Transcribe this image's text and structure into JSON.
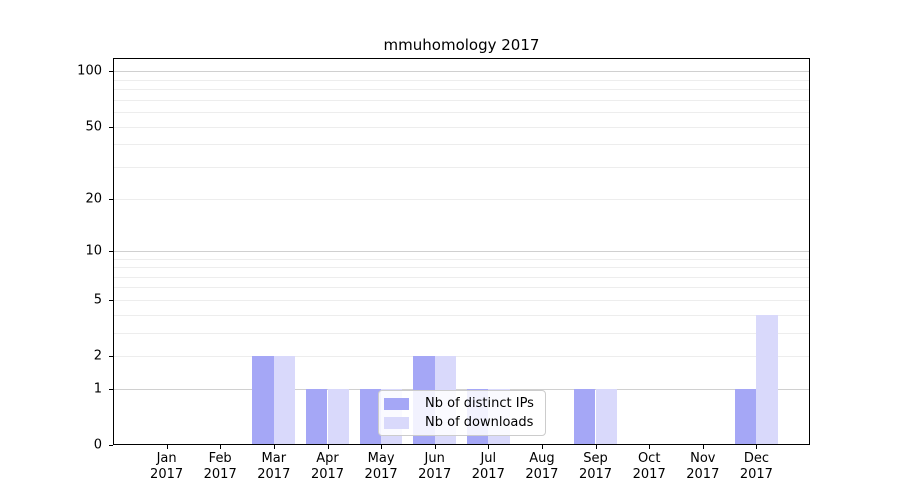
{
  "title": "mmuhomology 2017",
  "legend": {
    "items": [
      {
        "label": "Nb of distinct IPs",
        "color": "#a5a7f6"
      },
      {
        "label": "Nb of downloads",
        "color": "#d9d9fb"
      }
    ]
  },
  "chart_data": {
    "type": "bar",
    "title": "mmuhomology 2017",
    "categories": [
      "Jan 2017",
      "Feb 2017",
      "Mar 2017",
      "Apr 2017",
      "May 2017",
      "Jun 2017",
      "Jul 2017",
      "Aug 2017",
      "Sep 2017",
      "Oct 2017",
      "Nov 2017",
      "Dec 2017"
    ],
    "series": [
      {
        "name": "Nb of distinct IPs",
        "color": "#a5a7f6",
        "values": [
          0,
          0,
          2,
          1,
          1,
          2,
          1,
          0,
          1,
          0,
          0,
          1
        ]
      },
      {
        "name": "Nb of downloads",
        "color": "#d9d9fb",
        "values": [
          0,
          0,
          2,
          1,
          1,
          2,
          1,
          0,
          1,
          0,
          0,
          4
        ]
      }
    ],
    "xlabel": "",
    "ylabel": "",
    "y_scale": "log10(1+y)",
    "ylim": [
      0,
      118
    ],
    "y_ticks": [
      0,
      1,
      2,
      5,
      10,
      20,
      50,
      100
    ],
    "y_grid_major": [
      1,
      10,
      100
    ],
    "y_grid_minor": [
      2,
      3,
      4,
      5,
      6,
      7,
      8,
      9,
      20,
      30,
      40,
      50,
      60,
      70,
      80,
      90
    ],
    "grid": "on",
    "legend_position": "lower-center-right inside plot",
    "colors": {
      "axis": "#000000",
      "grid_major": "#d0d0d0",
      "grid_minor": "#ededed",
      "background": "#ffffff"
    }
  }
}
